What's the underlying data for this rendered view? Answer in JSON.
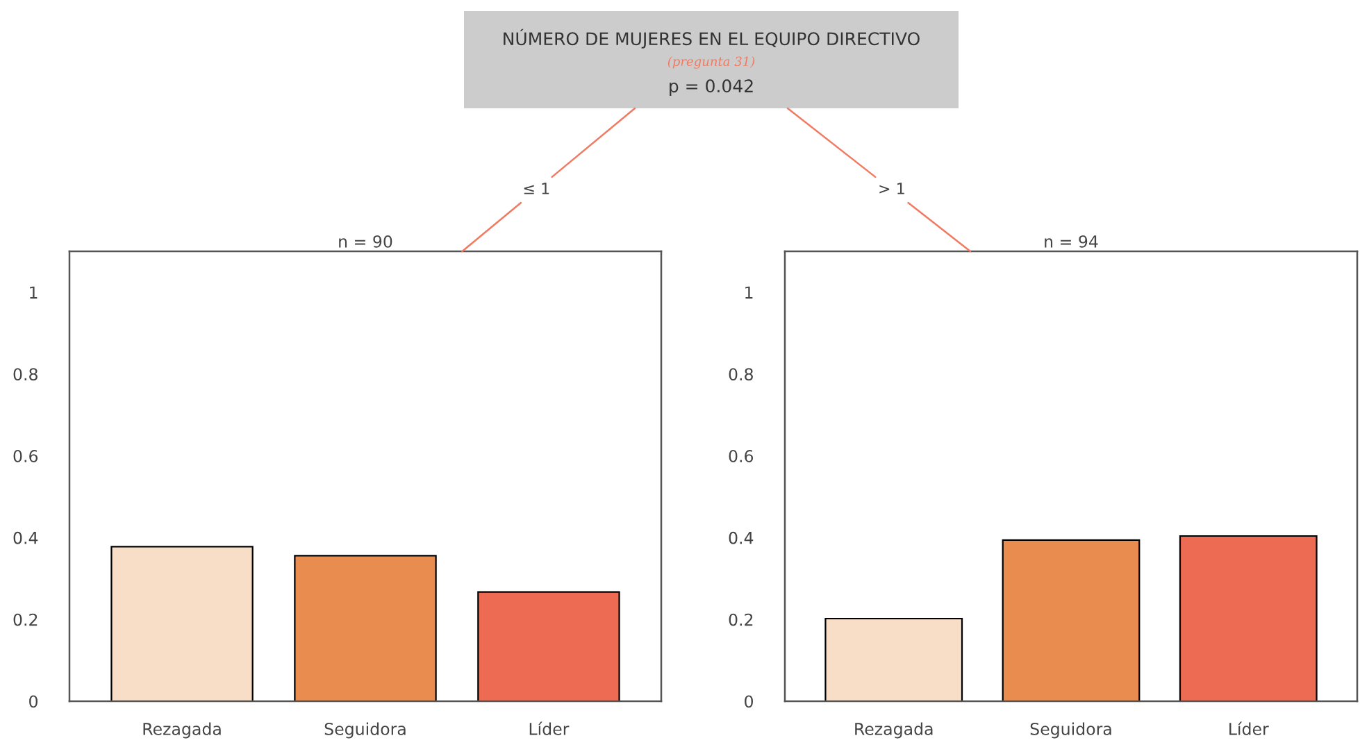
{
  "chart_data": [
    {
      "type": "other",
      "title": "NÚMERO DE MUJERES EN EL EQUIPO DIRECTIVO",
      "subtitle": "(pregunta 31)",
      "annotations": [
        "p = 0.042"
      ]
    },
    {
      "type": "bar",
      "title": "n = 90",
      "categories": [
        "Rezagada",
        "Seguidora",
        "Líder"
      ],
      "values": [
        0.378,
        0.356,
        0.267
      ],
      "colors": [
        "#f8dec7",
        "#e88c4f",
        "#ec6b52"
      ],
      "ylim": [
        0,
        1.1
      ],
      "yticks": [
        0,
        0.2,
        0.4,
        0.6,
        0.8,
        1
      ],
      "annotations": [
        "≤ 1"
      ]
    },
    {
      "type": "bar",
      "title": "n = 94",
      "categories": [
        "Rezagada",
        "Seguidora",
        "Líder"
      ],
      "values": [
        0.202,
        0.394,
        0.404
      ],
      "colors": [
        "#f8dec7",
        "#e88c4f",
        "#ec6b52"
      ],
      "ylim": [
        0,
        1.1
      ],
      "yticks": [
        0,
        0.2,
        0.4,
        0.6,
        0.8,
        1
      ],
      "annotations": [
        "> 1"
      ]
    }
  ]
}
